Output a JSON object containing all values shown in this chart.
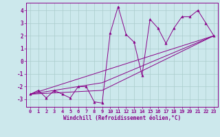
{
  "xlabel": "Windchill (Refroidissement éolien,°C)",
  "background_color": "#cce8ec",
  "line_color": "#880088",
  "grid_color": "#aacccc",
  "xlim": [
    -0.5,
    23.5
  ],
  "ylim": [
    -3.6,
    4.6
  ],
  "xticks": [
    0,
    1,
    2,
    3,
    4,
    5,
    6,
    7,
    8,
    9,
    10,
    11,
    12,
    13,
    14,
    15,
    16,
    17,
    18,
    19,
    20,
    21,
    22,
    23
  ],
  "yticks": [
    -3,
    -2,
    -1,
    0,
    1,
    2,
    3,
    4
  ],
  "series1_x": [
    0,
    1,
    2,
    3,
    4,
    5,
    6,
    7,
    8,
    9,
    10,
    11,
    12,
    13,
    14,
    15,
    16,
    17,
    18,
    19,
    20,
    21,
    22,
    23
  ],
  "series1_y": [
    -2.6,
    -2.3,
    -2.9,
    -2.3,
    -2.6,
    -2.9,
    -2.0,
    -2.0,
    -3.2,
    -3.3,
    2.2,
    4.3,
    2.1,
    1.5,
    -1.1,
    3.3,
    2.6,
    1.4,
    2.6,
    3.5,
    3.5,
    4.0,
    3.0,
    2.0
  ],
  "series2_x": [
    0,
    23
  ],
  "series2_y": [
    -2.6,
    2.0
  ],
  "series3_x": [
    0,
    9,
    23
  ],
  "series3_y": [
    -2.6,
    -1.7,
    2.0
  ],
  "series4_x": [
    0,
    9,
    23
  ],
  "series4_y": [
    -2.6,
    -2.3,
    2.0
  ],
  "xlabel_fontsize": 5.5,
  "tick_fontsize": 5.0
}
